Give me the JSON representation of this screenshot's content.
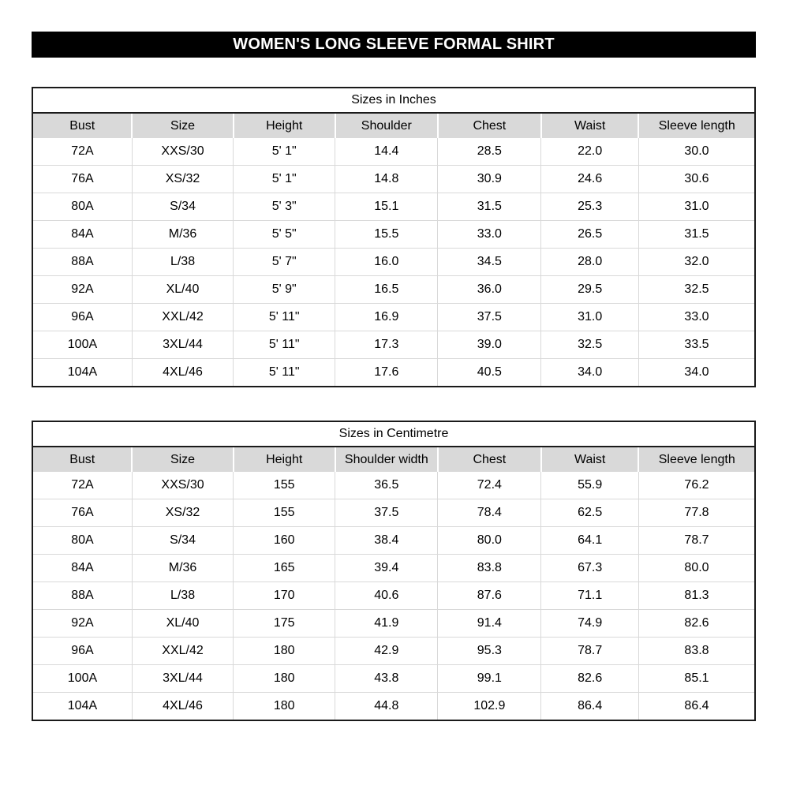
{
  "page_title": "WOMEN'S LONG SLEEVE FORMAL SHIRT",
  "colors": {
    "banner_bg": "#000000",
    "banner_text": "#ffffff",
    "header_row_bg": "#d9d9d9",
    "table_border": "#1a1a1a",
    "grid_line": "#d9d9d9"
  },
  "tables": [
    {
      "title": "Sizes in Inches",
      "columns": [
        "Bust",
        "Size",
        "Height",
        "Shoulder",
        "Chest",
        "Waist",
        "Sleeve length"
      ],
      "rows": [
        [
          "72A",
          "XXS/30",
          "5' 1\"",
          "14.4",
          "28.5",
          "22.0",
          "30.0"
        ],
        [
          "76A",
          "XS/32",
          "5' 1\"",
          "14.8",
          "30.9",
          "24.6",
          "30.6"
        ],
        [
          "80A",
          "S/34",
          "5' 3\"",
          "15.1",
          "31.5",
          "25.3",
          "31.0"
        ],
        [
          "84A",
          "M/36",
          "5' 5\"",
          "15.5",
          "33.0",
          "26.5",
          "31.5"
        ],
        [
          "88A",
          "L/38",
          "5' 7\"",
          "16.0",
          "34.5",
          "28.0",
          "32.0"
        ],
        [
          "92A",
          "XL/40",
          "5' 9\"",
          "16.5",
          "36.0",
          "29.5",
          "32.5"
        ],
        [
          "96A",
          "XXL/42",
          "5' 11\"",
          "16.9",
          "37.5",
          "31.0",
          "33.0"
        ],
        [
          "100A",
          "3XL/44",
          "5' 11\"",
          "17.3",
          "39.0",
          "32.5",
          "33.5"
        ],
        [
          "104A",
          "4XL/46",
          "5' 11\"",
          "17.6",
          "40.5",
          "34.0",
          "34.0"
        ]
      ]
    },
    {
      "title": "Sizes in Centimetre",
      "columns": [
        "Bust",
        "Size",
        "Height",
        "Shoulder width",
        "Chest",
        "Waist",
        "Sleeve length"
      ],
      "rows": [
        [
          "72A",
          "XXS/30",
          "155",
          "36.5",
          "72.4",
          "55.9",
          "76.2"
        ],
        [
          "76A",
          "XS/32",
          "155",
          "37.5",
          "78.4",
          "62.5",
          "77.8"
        ],
        [
          "80A",
          "S/34",
          "160",
          "38.4",
          "80.0",
          "64.1",
          "78.7"
        ],
        [
          "84A",
          "M/36",
          "165",
          "39.4",
          "83.8",
          "67.3",
          "80.0"
        ],
        [
          "88A",
          "L/38",
          "170",
          "40.6",
          "87.6",
          "71.1",
          "81.3"
        ],
        [
          "92A",
          "XL/40",
          "175",
          "41.9",
          "91.4",
          "74.9",
          "82.6"
        ],
        [
          "96A",
          "XXL/42",
          "180",
          "42.9",
          "95.3",
          "78.7",
          "83.8"
        ],
        [
          "100A",
          "3XL/44",
          "180",
          "43.8",
          "99.1",
          "82.6",
          "85.1"
        ],
        [
          "104A",
          "4XL/46",
          "180",
          "44.8",
          "102.9",
          "86.4",
          "86.4"
        ]
      ]
    }
  ]
}
